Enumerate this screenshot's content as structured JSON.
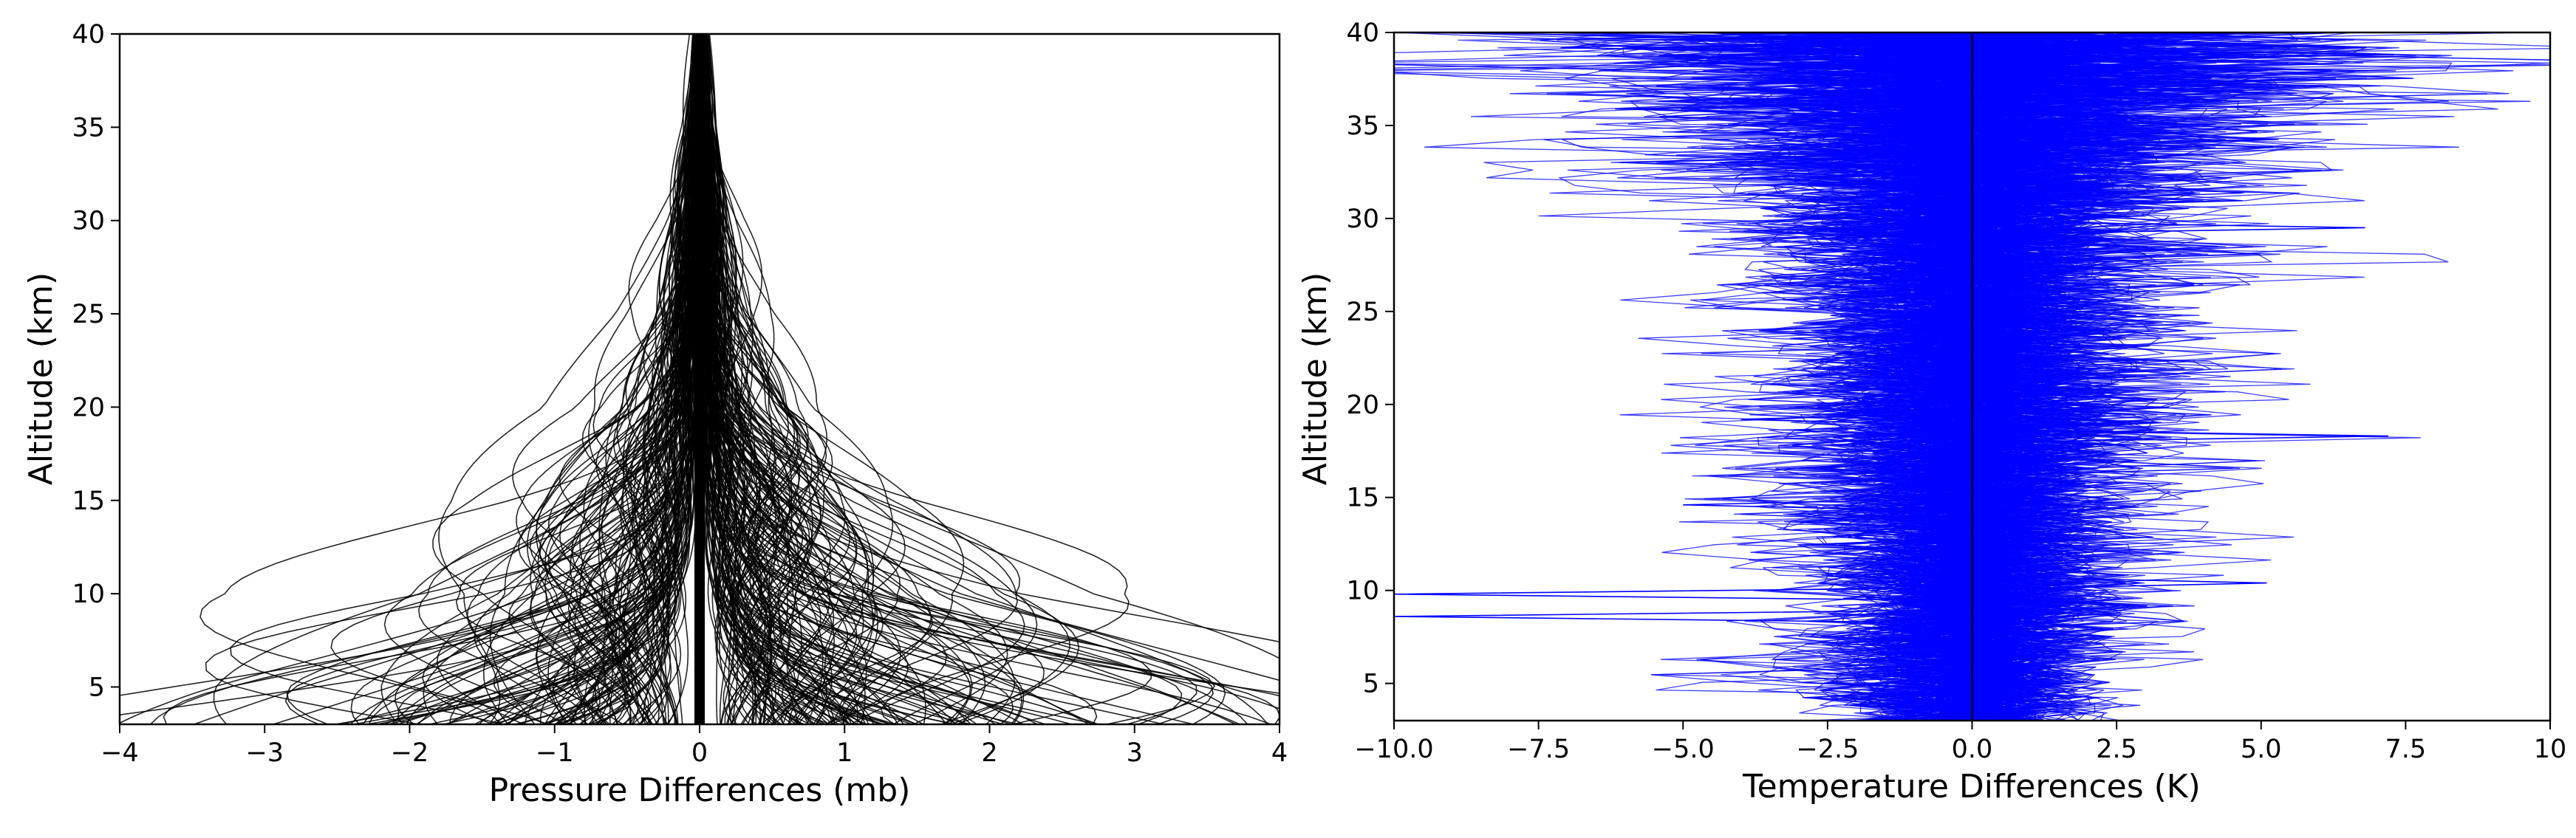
{
  "chart_data": [
    {
      "type": "line",
      "title": "",
      "xlabel": "Pressure Differences (mb)",
      "ylabel": "Altitude (km)",
      "xlim": [
        -4,
        4
      ],
      "ylim": [
        3,
        40
      ],
      "xticks": [
        -4,
        -3,
        -2,
        -1,
        0,
        1,
        2,
        3,
        4
      ],
      "yticks": [
        5,
        10,
        15,
        20,
        25,
        30,
        35,
        40
      ],
      "xtick_labels": [
        "−4",
        "−3",
        "−2",
        "−1",
        "0",
        "1",
        "2",
        "3",
        "4"
      ],
      "ytick_labels": [
        "5",
        "10",
        "15",
        "20",
        "25",
        "30",
        "35",
        "40"
      ],
      "grid": false,
      "legend": "none",
      "series_color": "#000000",
      "series_count_approx": 300,
      "envelope": [
        {
          "altitude": 3,
          "spread": 4.0
        },
        {
          "altitude": 5,
          "spread": 3.5
        },
        {
          "altitude": 8,
          "spread": 2.6
        },
        {
          "altitude": 10,
          "spread": 2.0
        },
        {
          "altitude": 15,
          "spread": 1.2
        },
        {
          "altitude": 20,
          "spread": 0.6
        },
        {
          "altitude": 25,
          "spread": 0.35
        },
        {
          "altitude": 30,
          "spread": 0.2
        },
        {
          "altitude": 35,
          "spread": 0.1
        },
        {
          "altitude": 40,
          "spread": 0.05
        }
      ]
    },
    {
      "type": "line",
      "title": "",
      "xlabel": "Temperature Differences (K)",
      "ylabel": "Altitude (km)",
      "xlim": [
        -10,
        10
      ],
      "ylim": [
        3,
        40
      ],
      "xticks": [
        -10,
        -7.5,
        -5,
        -2.5,
        0,
        2.5,
        5,
        7.5,
        10
      ],
      "yticks": [
        5,
        10,
        15,
        20,
        25,
        30,
        35,
        40
      ],
      "xtick_labels": [
        "−10.0",
        "−7.5",
        "−5.0",
        "−2.5",
        "0.0",
        "2.5",
        "5.0",
        "7.5",
        "10"
      ],
      "ytick_labels": [
        "5",
        "10",
        "15",
        "20",
        "25",
        "30",
        "35",
        "40"
      ],
      "grid": false,
      "legend": "none",
      "series_color": "#0000ff",
      "series_count_approx": 300,
      "envelope": [
        {
          "altitude": 3,
          "spread": 1.6
        },
        {
          "altitude": 5,
          "spread": 2.0
        },
        {
          "altitude": 10,
          "spread": 2.0
        },
        {
          "altitude": 15,
          "spread": 2.2
        },
        {
          "altitude": 20,
          "spread": 2.5
        },
        {
          "altitude": 25,
          "spread": 2.4
        },
        {
          "altitude": 30,
          "spread": 2.8
        },
        {
          "altitude": 35,
          "spread": 4.0
        },
        {
          "altitude": 40,
          "spread": 6.0
        }
      ],
      "outliers": [
        {
          "altitude": 9.8,
          "value": -10.0
        },
        {
          "altitude": 8.6,
          "value": -10.0
        },
        {
          "altitude": 10.4,
          "value": 5.1
        },
        {
          "altitude": 18.3,
          "value": 7.2
        },
        {
          "altitude": 29.5,
          "value": 6.8
        },
        {
          "altitude": 38.8,
          "value": 7.3
        },
        {
          "altitude": 19.2,
          "value": -4.0
        },
        {
          "altitude": 14.6,
          "value": -5.0
        }
      ]
    }
  ]
}
